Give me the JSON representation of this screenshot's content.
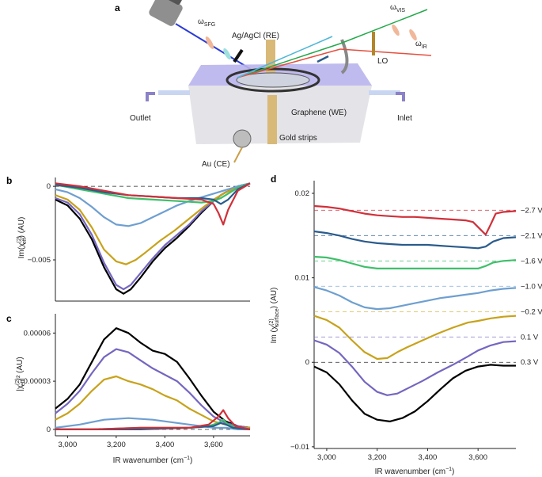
{
  "schematic": {
    "panel_label": "a",
    "omega_sfg": "ω",
    "omega_sfg_sub": "SFG",
    "omega_vis": "ω",
    "omega_vis_sub": "VIS",
    "omega_ir": "ω",
    "omega_ir_sub": "IR",
    "ref_electrode": "Ag/AgCl (RE)",
    "lo": "LO",
    "outlet": "Outlet",
    "inlet": "Inlet",
    "working_electrode": "Graphene (WE)",
    "gold_strips": "Gold strips",
    "counter_electrode": "Au (CE)",
    "colors": {
      "blue_beam": "#2b3bd6",
      "green_beam": "#23a84a",
      "red_beam": "#e4503f",
      "cell": "#b9b4ec",
      "gold": "#c9a04a"
    }
  },
  "colors": {
    "0.3 V": "#000000",
    "0.1 V": "#7466c0",
    "-0.2 V": "#c8a21a",
    "-1.0 V": "#6e9fd0",
    "-1.6 V": "#3fbf6a",
    "-2.1 V": "#2a5b8c",
    "-2.7 V": "#d0303a"
  },
  "chart_data": [
    {
      "panel": "b",
      "type": "line",
      "ylabel": "Im(χ",
      "ylabel_sup": "(2)",
      "ylabel_sub": "eff",
      "ylabel_tail": ") (AU)",
      "xlim": [
        2950,
        3750
      ],
      "ylim": [
        -0.0078,
        0.0006
      ],
      "yticks": [
        0,
        -0.005
      ],
      "ytick_labels": [
        "0",
        "−0.005"
      ],
      "zero_line": true,
      "series": [
        {
          "color": "#000000",
          "x": [
            2950,
            3000,
            3050,
            3100,
            3150,
            3200,
            3230,
            3260,
            3300,
            3350,
            3400,
            3450,
            3500,
            3550,
            3600,
            3630,
            3650,
            3680,
            3700,
            3750
          ],
          "y": [
            -0.0009,
            -0.0013,
            -0.0022,
            -0.0036,
            -0.0055,
            -0.007,
            -0.0073,
            -0.007,
            -0.0062,
            -0.0051,
            -0.0042,
            -0.0035,
            -0.0027,
            -0.0018,
            -0.001,
            -0.0006,
            -0.0004,
            -0.0002,
            0,
            0.0002
          ]
        },
        {
          "color": "#7466c0",
          "x": [
            2950,
            3000,
            3050,
            3100,
            3150,
            3200,
            3230,
            3260,
            3300,
            3350,
            3400,
            3450,
            3500,
            3550,
            3600,
            3630,
            3650,
            3680,
            3700,
            3750
          ],
          "y": [
            -0.0008,
            -0.0011,
            -0.0019,
            -0.0033,
            -0.0052,
            -0.0067,
            -0.007,
            -0.0067,
            -0.0059,
            -0.0049,
            -0.004,
            -0.0033,
            -0.0026,
            -0.0017,
            -0.001,
            -0.0006,
            -0.0004,
            -0.0002,
            0,
            0.0002
          ]
        },
        {
          "color": "#c8a21a",
          "x": [
            2950,
            3000,
            3050,
            3100,
            3150,
            3200,
            3240,
            3280,
            3320,
            3380,
            3440,
            3500,
            3560,
            3600,
            3640,
            3680,
            3700,
            3750
          ],
          "y": [
            -0.0006,
            -0.0009,
            -0.0016,
            -0.0028,
            -0.0043,
            -0.0051,
            -0.0053,
            -0.005,
            -0.0045,
            -0.0037,
            -0.003,
            -0.0022,
            -0.0014,
            -0.0009,
            -0.0005,
            -0.0002,
            0,
            0.0002
          ]
        },
        {
          "color": "#6e9fd0",
          "x": [
            2950,
            3000,
            3050,
            3100,
            3150,
            3200,
            3250,
            3300,
            3350,
            3400,
            3450,
            3500,
            3560,
            3600,
            3640,
            3680,
            3700,
            3750
          ],
          "y": [
            -0.0002,
            -0.0004,
            -0.0008,
            -0.0014,
            -0.0021,
            -0.0026,
            -0.0027,
            -0.0025,
            -0.0021,
            -0.0017,
            -0.0013,
            -0.001,
            -0.0007,
            -0.0005,
            -0.0003,
            -0.0001,
            0,
            0.0002
          ]
        },
        {
          "color": "#3fbf6a",
          "x": [
            2950,
            3050,
            3150,
            3250,
            3350,
            3450,
            3550,
            3600,
            3630,
            3660,
            3700,
            3750
          ],
          "y": [
            0.0001,
            -0.0002,
            -0.0005,
            -0.0008,
            -0.0009,
            -0.001,
            -0.0011,
            -0.001,
            -0.0008,
            -0.0005,
            -0.0001,
            0.0002
          ]
        },
        {
          "color": "#2a5b8c",
          "x": [
            2950,
            3050,
            3150,
            3250,
            3350,
            3450,
            3550,
            3600,
            3630,
            3660,
            3700,
            3750
          ],
          "y": [
            0.0001,
            -0.0001,
            -0.0004,
            -0.0006,
            -0.0007,
            -0.0008,
            -0.0008,
            -0.0009,
            -0.0012,
            -0.0009,
            -0.0002,
            0.0002
          ]
        },
        {
          "color": "#d0303a",
          "x": [
            2950,
            3050,
            3150,
            3250,
            3350,
            3450,
            3550,
            3600,
            3620,
            3640,
            3660,
            3700,
            3750
          ],
          "y": [
            0.0002,
            0,
            -0.0003,
            -0.0006,
            -0.0007,
            -0.0008,
            -0.0009,
            -0.0012,
            -0.0018,
            -0.0026,
            -0.0016,
            -0.0003,
            0.0002
          ]
        }
      ]
    },
    {
      "panel": "c",
      "type": "line",
      "ylabel": "|χ",
      "ylabel_sup": "(2)",
      "ylabel_sub": "eff",
      "ylabel_tail": "|² (AU)",
      "xlabel": "IR wavenumber (cm",
      "xlabel_sup": "−1",
      "xlabel_tail": ")",
      "xlim": [
        2950,
        3750
      ],
      "ylim": [
        -4e-06,
        7.2e-05
      ],
      "yticks": [
        0,
        3e-05,
        6e-05
      ],
      "ytick_labels": [
        "0",
        "0.00003",
        "0.00006"
      ],
      "xticks": [
        3000,
        3200,
        3400,
        3600
      ],
      "xtick_labels": [
        "3,000",
        "3,200",
        "3,400",
        "3,600"
      ],
      "zero_line": true,
      "series": [
        {
          "color": "#000000",
          "x": [
            2950,
            3000,
            3050,
            3100,
            3150,
            3200,
            3250,
            3300,
            3350,
            3400,
            3450,
            3500,
            3550,
            3600,
            3650,
            3700,
            3750
          ],
          "y": [
            1.3e-05,
            1.9e-05,
            2.8e-05,
            4.2e-05,
            5.6e-05,
            6.3e-05,
            6e-05,
            5.4e-05,
            4.9e-05,
            4.7e-05,
            4.2e-05,
            3.2e-05,
            2.1e-05,
            1.1e-05,
            5e-06,
            2e-06,
            1e-06
          ]
        },
        {
          "color": "#7466c0",
          "x": [
            2950,
            3000,
            3050,
            3100,
            3150,
            3200,
            3250,
            3300,
            3350,
            3400,
            3450,
            3500,
            3550,
            3600,
            3650,
            3700,
            3750
          ],
          "y": [
            1e-05,
            1.6e-05,
            2.4e-05,
            3.5e-05,
            4.5e-05,
            5e-05,
            4.8e-05,
            4.3e-05,
            3.8e-05,
            3.4e-05,
            3e-05,
            2.3e-05,
            1.5e-05,
            8e-06,
            4e-06,
            2e-06,
            1e-06
          ]
        },
        {
          "color": "#c8a21a",
          "x": [
            2950,
            3000,
            3050,
            3100,
            3150,
            3200,
            3250,
            3300,
            3350,
            3400,
            3450,
            3500,
            3550,
            3600,
            3650,
            3700,
            3750
          ],
          "y": [
            6e-06,
            1e-05,
            1.6e-05,
            2.4e-05,
            3.1e-05,
            3.3e-05,
            3e-05,
            2.8e-05,
            2.5e-05,
            2.1e-05,
            1.8e-05,
            1.3e-05,
            9e-06,
            5e-06,
            3e-06,
            1e-06,
            1e-06
          ]
        },
        {
          "color": "#6e9fd0",
          "x": [
            2950,
            3050,
            3150,
            3250,
            3350,
            3450,
            3550,
            3600,
            3650,
            3700,
            3750
          ],
          "y": [
            1e-06,
            3e-06,
            6e-06,
            7e-06,
            6e-06,
            4e-06,
            2e-06,
            1e-06,
            1e-06,
            0,
            0
          ]
        },
        {
          "color": "#3fbf6a",
          "x": [
            2950,
            3100,
            3300,
            3500,
            3580,
            3620,
            3640,
            3660,
            3700,
            3750
          ],
          "y": [
            0,
            0,
            1e-06,
            1e-06,
            2e-06,
            4e-06,
            6e-06,
            3e-06,
            1e-06,
            0
          ]
        },
        {
          "color": "#2a5b8c",
          "x": [
            2950,
            3100,
            3300,
            3500,
            3600,
            3630,
            3650,
            3680,
            3750
          ],
          "y": [
            0,
            0,
            0,
            1e-06,
            2e-06,
            4e-06,
            3e-06,
            1e-06,
            0
          ]
        },
        {
          "color": "#d0303a",
          "x": [
            2950,
            3100,
            3300,
            3500,
            3580,
            3620,
            3640,
            3660,
            3690,
            3750
          ],
          "y": [
            0,
            0,
            1e-06,
            1e-06,
            3e-06,
            8e-06,
            1.2e-05,
            7e-06,
            2e-06,
            0
          ]
        }
      ]
    },
    {
      "panel": "d",
      "type": "line",
      "ylabel": "Im (χ",
      "ylabel_sup": "(2)",
      "ylabel_sub": "surface",
      "ylabel_tail": ") (AU)",
      "xlabel": "IR wavenumber (cm",
      "xlabel_sup": "−1",
      "xlabel_tail": ")",
      "xlim": [
        2950,
        3750
      ],
      "ylim": [
        -0.0102,
        0.0215
      ],
      "yticks": [
        -0.01,
        0,
        0.01,
        0.02
      ],
      "ytick_labels": [
        "−0.01",
        "0",
        "0.01",
        "0.02"
      ],
      "xticks": [
        3000,
        3200,
        3400,
        3600
      ],
      "xtick_labels": [
        "3,000",
        "3,200",
        "3,400",
        "3,600"
      ],
      "series": [
        {
          "name": "0.3 V",
          "color": "#000000",
          "offset": 0,
          "x": [
            2950,
            3000,
            3050,
            3100,
            3150,
            3200,
            3250,
            3300,
            3350,
            3400,
            3450,
            3500,
            3550,
            3600,
            3650,
            3700,
            3750
          ],
          "y": [
            -0.0005,
            -0.0012,
            -0.0026,
            -0.0045,
            -0.0061,
            -0.0068,
            -0.007,
            -0.0066,
            -0.0058,
            -0.0046,
            -0.0032,
            -0.0019,
            -0.001,
            -0.0005,
            -0.0003,
            -0.0004,
            -0.0004
          ]
        },
        {
          "name": "0.1 V",
          "color": "#7466c0",
          "offset": 0.003,
          "x": [
            2950,
            3000,
            3050,
            3100,
            3150,
            3200,
            3240,
            3280,
            3320,
            3380,
            3440,
            3500,
            3560,
            3600,
            3650,
            3700,
            3750
          ],
          "y": [
            0.0026,
            0.0021,
            0.0011,
            -0.0005,
            -0.0023,
            -0.0035,
            -0.0039,
            -0.0037,
            -0.0031,
            -0.0022,
            -0.0012,
            -0.0003,
            0.0007,
            0.0014,
            0.002,
            0.0024,
            0.0025
          ]
        },
        {
          "name": "−0.2 V",
          "color": "#c8a21a",
          "offset": 0.006,
          "x": [
            2950,
            3000,
            3050,
            3100,
            3150,
            3200,
            3240,
            3280,
            3320,
            3380,
            3440,
            3500,
            3560,
            3600,
            3650,
            3700,
            3750
          ],
          "y": [
            0.0055,
            0.005,
            0.0041,
            0.0026,
            0.0012,
            0.0004,
            0.0005,
            0.0012,
            0.0018,
            0.0026,
            0.0034,
            0.0041,
            0.0047,
            0.0049,
            0.0052,
            0.0054,
            0.0055
          ]
        },
        {
          "name": "−1.0 V",
          "color": "#6e9fd0",
          "offset": 0.009,
          "x": [
            2950,
            3000,
            3050,
            3100,
            3150,
            3200,
            3250,
            3300,
            3350,
            3400,
            3450,
            3500,
            3550,
            3600,
            3650,
            3700,
            3750
          ],
          "y": [
            0.0089,
            0.0085,
            0.0079,
            0.0071,
            0.0065,
            0.0063,
            0.0064,
            0.0067,
            0.007,
            0.0073,
            0.0076,
            0.0078,
            0.008,
            0.0082,
            0.0085,
            0.0087,
            0.0088
          ]
        },
        {
          "name": "−1.6 V",
          "color": "#3fbf6a",
          "offset": 0.012,
          "x": [
            2950,
            3000,
            3050,
            3100,
            3150,
            3200,
            3250,
            3300,
            3350,
            3400,
            3450,
            3500,
            3550,
            3600,
            3630,
            3660,
            3700,
            3750
          ],
          "y": [
            0.0125,
            0.0124,
            0.0121,
            0.0117,
            0.0113,
            0.0111,
            0.0111,
            0.0111,
            0.0111,
            0.0111,
            0.0111,
            0.0111,
            0.0111,
            0.0111,
            0.0114,
            0.0118,
            0.012,
            0.0121
          ]
        },
        {
          "name": "−2.1 V",
          "color": "#2a5b8c",
          "offset": 0.015,
          "x": [
            2950,
            3000,
            3050,
            3100,
            3150,
            3200,
            3250,
            3300,
            3350,
            3400,
            3450,
            3500,
            3550,
            3600,
            3630,
            3660,
            3700,
            3750
          ],
          "y": [
            0.0155,
            0.0153,
            0.015,
            0.0146,
            0.0143,
            0.0141,
            0.014,
            0.0139,
            0.0139,
            0.0139,
            0.0138,
            0.0137,
            0.0136,
            0.0135,
            0.0137,
            0.0143,
            0.0147,
            0.0148
          ]
        },
        {
          "name": "−2.7 V",
          "color": "#d0303a",
          "offset": 0.018,
          "x": [
            2950,
            3000,
            3050,
            3100,
            3150,
            3200,
            3250,
            3300,
            3350,
            3400,
            3450,
            3500,
            3550,
            3580,
            3610,
            3630,
            3650,
            3670,
            3700,
            3750
          ],
          "y": [
            0.0185,
            0.0184,
            0.0182,
            0.0179,
            0.0176,
            0.0174,
            0.0173,
            0.0172,
            0.0172,
            0.0171,
            0.017,
            0.0169,
            0.0168,
            0.0166,
            0.0157,
            0.0151,
            0.0163,
            0.0176,
            0.0178,
            0.0179
          ]
        }
      ],
      "voltage_labels": [
        "−2.7 V",
        "−2.1 V",
        "−1.6 V",
        "−1.0 V",
        "−0.2 V",
        "0.1 V",
        "0.3 V"
      ]
    }
  ],
  "panel_labels": {
    "b": "b",
    "c": "c",
    "d": "d"
  }
}
